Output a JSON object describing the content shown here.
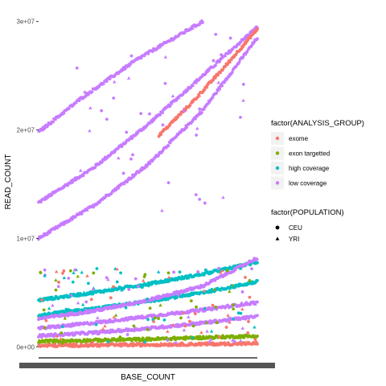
{
  "chart_data": {
    "type": "scatter",
    "xlabel": "BASE_COUNT",
    "ylabel": "READ_COUNT",
    "ylim": [
      -500000,
      30500000
    ],
    "y_ticks": [
      {
        "value": 0,
        "label": "0e+00"
      },
      {
        "value": 10000000,
        "label": "1e+07"
      },
      {
        "value": 20000000,
        "label": "2e+07"
      },
      {
        "value": 30000000,
        "label": "3e+07"
      }
    ],
    "x_tick_labels_note": "x-axis tick labels are overplotted into an unreadable dense band",
    "grid": false,
    "legend_position": "right",
    "legends": [
      {
        "title": "factor(ANALYSIS_GROUP)",
        "kind": "color",
        "entries": [
          {
            "label": "exome",
            "color": "#F8766D"
          },
          {
            "label": "exon targetted",
            "color": "#7CAE00"
          },
          {
            "label": "high coverage",
            "color": "#00BFC4"
          },
          {
            "label": "low coverage",
            "color": "#C77CFF"
          }
        ]
      },
      {
        "title": "factor(POPULATION)",
        "kind": "shape",
        "entries": [
          {
            "label": "CEU",
            "shape": "circle"
          },
          {
            "label": "YRI",
            "shape": "triangle"
          }
        ]
      }
    ],
    "series": [
      {
        "name": "low coverage",
        "color": "#C77CFF",
        "shape": "circle",
        "x": [
          0,
          0.25,
          0.5,
          0.75,
          1
        ],
        "y": [
          13300000,
          16500000,
          20500000,
          25000000,
          29500000
        ]
      },
      {
        "name": "low coverage",
        "color": "#C77CFF",
        "shape": "circle",
        "x": [
          0,
          0.25,
          0.5,
          0.75,
          1
        ],
        "y": [
          10000000,
          13000000,
          16800000,
          21800000,
          28500000
        ]
      },
      {
        "name": "low coverage",
        "color": "#C77CFF",
        "shape": "circle",
        "x": [
          0,
          0.2,
          0.45,
          0.75
        ],
        "y": [
          19800000,
          23000000,
          26500000,
          30000000
        ]
      },
      {
        "name": "exome",
        "color": "#F8766D",
        "shape": "circle",
        "x": [
          0.55,
          0.7,
          0.85,
          1
        ],
        "y": [
          19500000,
          22500000,
          25800000,
          29300000
        ]
      },
      {
        "name": "high coverage",
        "color": "#00BFC4",
        "shape": "circle",
        "x": [
          0,
          0.25,
          0.5,
          0.75,
          1
        ],
        "y": [
          4300000,
          5000000,
          5800000,
          6700000,
          7800000
        ]
      },
      {
        "name": "high coverage",
        "color": "#00BFC4",
        "shape": "circle",
        "x": [
          0,
          0.25,
          0.5,
          0.75,
          1
        ],
        "y": [
          2900000,
          3500000,
          4200000,
          5000000,
          6000000
        ]
      },
      {
        "name": "low coverage",
        "color": "#C77CFF",
        "shape": "circle",
        "x": [
          0,
          0.25,
          0.5,
          0.75,
          1
        ],
        "y": [
          2600000,
          3300000,
          4300000,
          5600000,
          8200000
        ]
      },
      {
        "name": "low coverage",
        "color": "#C77CFF",
        "shape": "circle",
        "x": [
          0,
          0.25,
          0.5,
          0.75,
          1
        ],
        "y": [
          1700000,
          2200000,
          2800000,
          3400000,
          4100000
        ]
      },
      {
        "name": "low coverage",
        "color": "#C77CFF",
        "shape": "circle",
        "x": [
          0,
          0.25,
          0.5,
          0.75,
          1
        ],
        "y": [
          1000000,
          1300000,
          1700000,
          2200000,
          2800000
        ]
      },
      {
        "name": "exon targetted",
        "color": "#7CAE00",
        "shape": "circle",
        "x": [
          0,
          0.5,
          1
        ],
        "y": [
          500000,
          700000,
          1000000
        ]
      },
      {
        "name": "exome",
        "color": "#F8766D",
        "shape": "circle",
        "x": [
          0,
          0.5,
          1
        ],
        "y": [
          100000,
          200000,
          300000
        ]
      }
    ]
  }
}
